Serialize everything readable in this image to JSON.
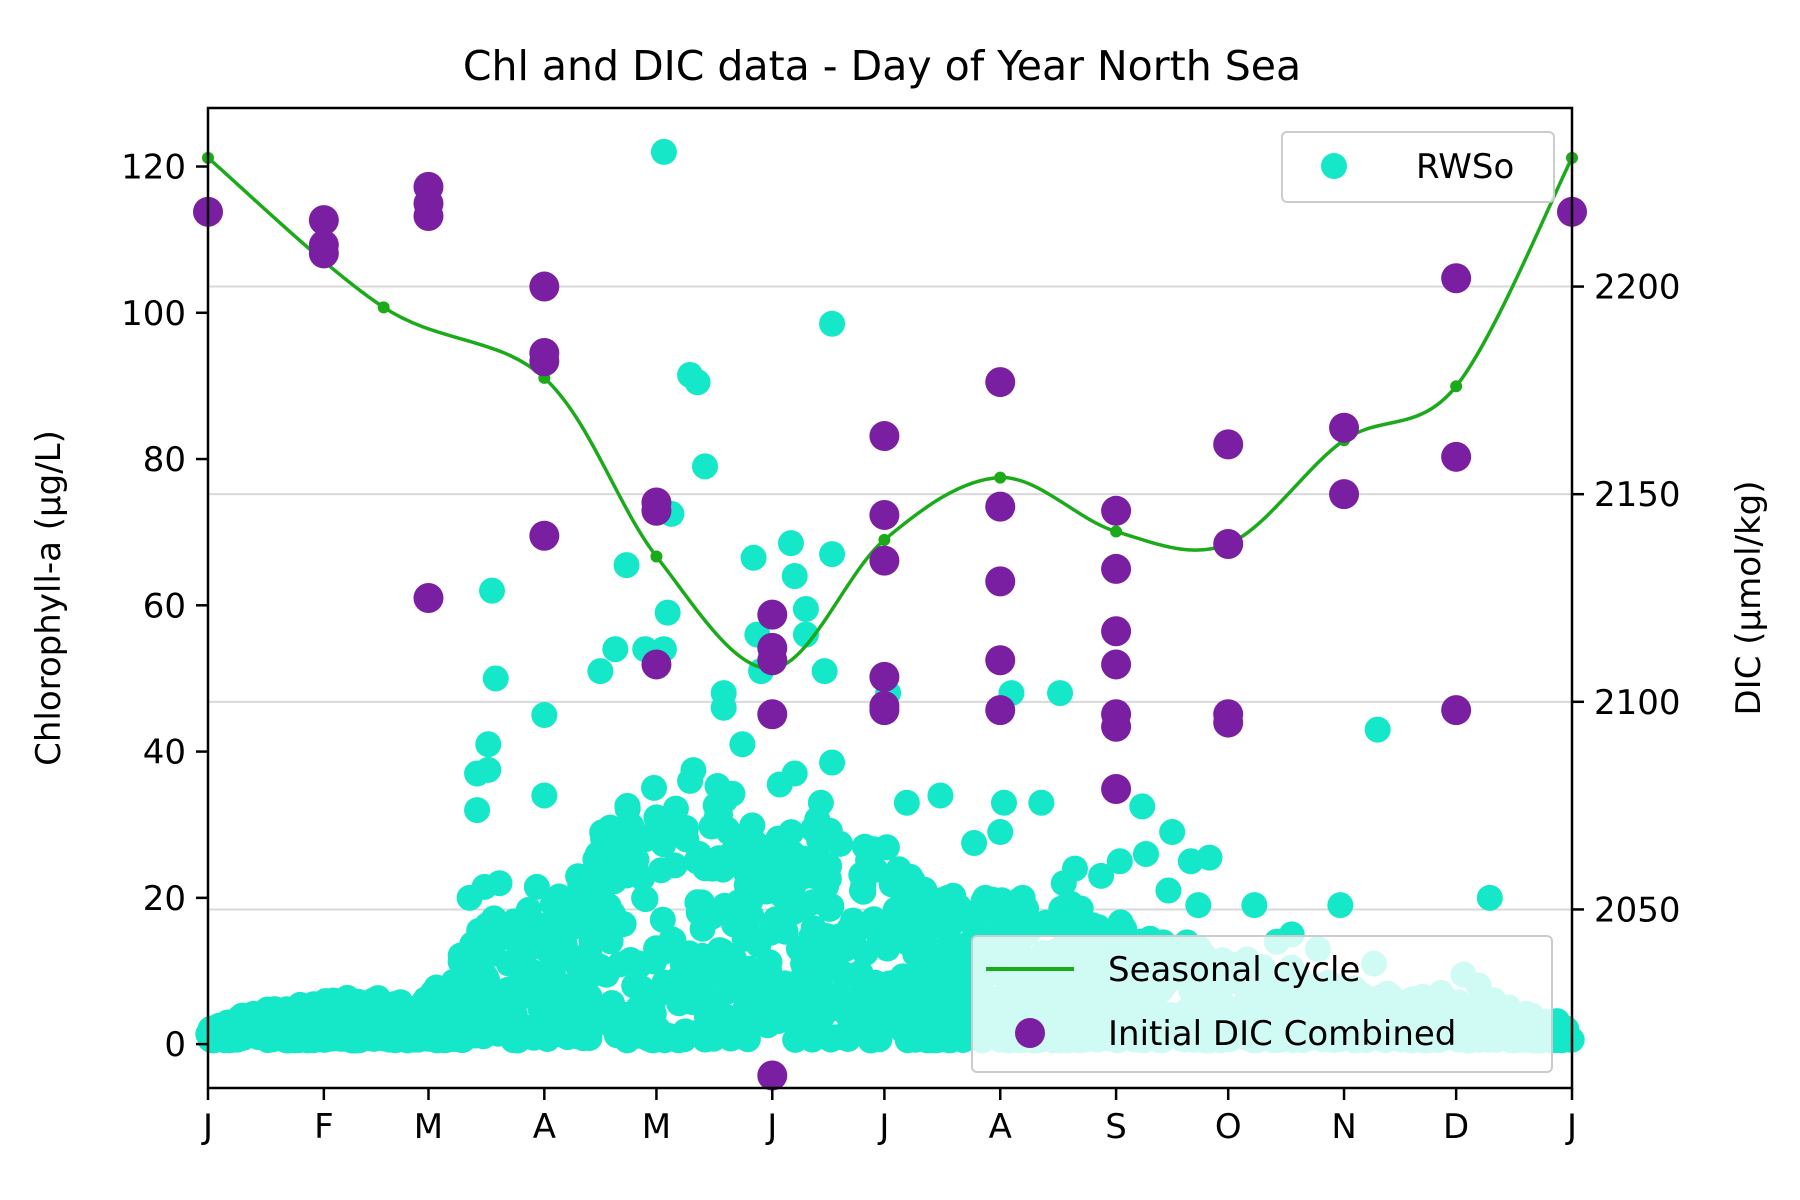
{
  "chart_data": {
    "type": "scatter",
    "title": "Chl and DIC data - Day of Year North Sea",
    "x_axis": {
      "range_days": [
        0,
        365
      ],
      "tick_days": [
        0,
        31,
        59,
        90,
        120,
        151,
        181,
        212,
        243,
        273,
        304,
        334,
        365
      ],
      "tick_labels": [
        "J",
        "F",
        "M",
        "A",
        "M",
        "J",
        "J",
        "A",
        "S",
        "O",
        "N",
        "D",
        "J"
      ]
    },
    "y_left": {
      "label": "Chlorophyll-a (µg/L)",
      "range": [
        -6,
        128
      ],
      "ticks": [
        0,
        20,
        40,
        60,
        80,
        100,
        120
      ]
    },
    "y_right": {
      "label": "DIC (µmol/kg)",
      "range": [
        2007,
        2243
      ],
      "ticks": [
        2050,
        2100,
        2150,
        2200
      ],
      "grid": true
    },
    "legends": [
      {
        "position": "upper-right",
        "entries": [
          "RWSo"
        ]
      },
      {
        "position": "lower-right",
        "entries": [
          "Seasonal cycle",
          "Initial DIC Combined"
        ]
      }
    ],
    "series": [
      {
        "name": "RWSo",
        "axis": "left",
        "kind": "scatter",
        "color": "#14e8c9",
        "points": [
          [
            122,
            122
          ],
          [
            167,
            98.5
          ],
          [
            129,
            91.5
          ],
          [
            131,
            90.5
          ],
          [
            133,
            79
          ],
          [
            124,
            72.5
          ],
          [
            112,
            65.5
          ],
          [
            146,
            66.5
          ],
          [
            156,
            68.5
          ],
          [
            167,
            67
          ],
          [
            157,
            64
          ],
          [
            76,
            62
          ],
          [
            160,
            59.5
          ],
          [
            123,
            59
          ],
          [
            160,
            56
          ],
          [
            147,
            56
          ],
          [
            105,
            51
          ],
          [
            109,
            54
          ],
          [
            117,
            54
          ],
          [
            122,
            54
          ],
          [
            138,
            48
          ],
          [
            148,
            51
          ],
          [
            165,
            51
          ],
          [
            77,
            50
          ],
          [
            182,
            48
          ],
          [
            228,
            48
          ],
          [
            215,
            48
          ],
          [
            90,
            45
          ],
          [
            138,
            46
          ],
          [
            75,
            41
          ],
          [
            143,
            41
          ],
          [
            167,
            38.5
          ],
          [
            72,
            37
          ],
          [
            75,
            37.5
          ],
          [
            90,
            34
          ],
          [
            72,
            32
          ],
          [
            153,
            35.5
          ],
          [
            157,
            37
          ],
          [
            164,
            33
          ],
          [
            187,
            33
          ],
          [
            196,
            34
          ],
          [
            205,
            27.5
          ],
          [
            213,
            33
          ],
          [
            223,
            33
          ],
          [
            250,
            32.5
          ],
          [
            258,
            29
          ],
          [
            263,
            25
          ],
          [
            268,
            25.5
          ],
          [
            212,
            29
          ],
          [
            229,
            22
          ],
          [
            232,
            24
          ],
          [
            244,
            25
          ],
          [
            251,
            26
          ],
          [
            239,
            23
          ],
          [
            70,
            20
          ],
          [
            74,
            21.5
          ],
          [
            78,
            22
          ],
          [
            88,
            21.5
          ],
          [
            100,
            21
          ],
          [
            108,
            24
          ],
          [
            113,
            30
          ],
          [
            120,
            31
          ],
          [
            128,
            28
          ],
          [
            135,
            24
          ],
          [
            140,
            26
          ],
          [
            148,
            23
          ],
          [
            160,
            23
          ],
          [
            175,
            21
          ],
          [
            188,
            21
          ],
          [
            198,
            20
          ],
          [
            208,
            20
          ],
          [
            218,
            20
          ],
          [
            257,
            21
          ],
          [
            265,
            19
          ],
          [
            280,
            19
          ],
          [
            286,
            14
          ],
          [
            290,
            15
          ],
          [
            297,
            13
          ],
          [
            312,
            11
          ],
          [
            330,
            7
          ],
          [
            336,
            9.5
          ],
          [
            340,
            8
          ],
          [
            344,
            6
          ],
          [
            348,
            5
          ],
          [
            303,
            19
          ],
          [
            313,
            43
          ],
          [
            343,
            20
          ],
          [
            362,
            1.5
          ]
        ],
        "dense_band": {
          "description": "dense cluster of observations across the year",
          "x_days": [
            0,
            10,
            20,
            30,
            40,
            50,
            59,
            64,
            68,
            75,
            82,
            90,
            100,
            110,
            120,
            130,
            140,
            150,
            160,
            170,
            180,
            190,
            200,
            210,
            220,
            230,
            240,
            250,
            260,
            270,
            280,
            290,
            300,
            310,
            320,
            330,
            340,
            350,
            360,
            365
          ],
          "y_upper": [
            3,
            4,
            4.5,
            6,
            6,
            6,
            6,
            9,
            12,
            17,
            19,
            19,
            23,
            34,
            36,
            38,
            36,
            30,
            31,
            29,
            28,
            21,
            20,
            20,
            20,
            19,
            17,
            15,
            14,
            12,
            11,
            10,
            8,
            7,
            6,
            6,
            5,
            4,
            3,
            2
          ]
        }
      },
      {
        "name": "Initial DIC Combined",
        "axis": "right",
        "kind": "scatter",
        "color": "#7b1fa2",
        "points": [
          [
            0,
            2218
          ],
          [
            31,
            2216
          ],
          [
            31,
            2208
          ],
          [
            31,
            2210
          ],
          [
            59,
            2224
          ],
          [
            59,
            2220
          ],
          [
            59,
            2217
          ],
          [
            59,
            2125
          ],
          [
            90,
            2200
          ],
          [
            90,
            2184
          ],
          [
            90,
            2182
          ],
          [
            90,
            2140
          ],
          [
            120,
            2148
          ],
          [
            120,
            2146
          ],
          [
            120,
            2109
          ],
          [
            151,
            2121
          ],
          [
            151,
            2113
          ],
          [
            151,
            2110
          ],
          [
            151,
            2097
          ],
          [
            151,
            2010
          ],
          [
            181,
            2164
          ],
          [
            181,
            2145
          ],
          [
            181,
            2134
          ],
          [
            181,
            2106
          ],
          [
            181,
            2099
          ],
          [
            181,
            2098
          ],
          [
            212,
            2177
          ],
          [
            212,
            2147
          ],
          [
            212,
            2129
          ],
          [
            212,
            2110
          ],
          [
            212,
            2098
          ],
          [
            243,
            2146
          ],
          [
            243,
            2132
          ],
          [
            243,
            2117
          ],
          [
            243,
            2109
          ],
          [
            243,
            2097
          ],
          [
            243,
            2094
          ],
          [
            243,
            2079
          ],
          [
            273,
            2162
          ],
          [
            273,
            2138
          ],
          [
            273,
            2097
          ],
          [
            273,
            2095
          ],
          [
            304,
            2166
          ],
          [
            304,
            2150
          ],
          [
            334,
            2202
          ],
          [
            334,
            2159
          ],
          [
            334,
            2098
          ],
          [
            365,
            2218
          ]
        ]
      },
      {
        "name": "Seasonal cycle",
        "axis": "right",
        "kind": "line",
        "color": "#1aaa1a",
        "points": [
          [
            0,
            2231
          ],
          [
            47,
            2195
          ],
          [
            90,
            2178
          ],
          [
            120,
            2135
          ],
          [
            151,
            2108
          ],
          [
            181,
            2139
          ],
          [
            212,
            2154
          ],
          [
            243,
            2141
          ],
          [
            273,
            2138
          ],
          [
            304,
            2163
          ],
          [
            334,
            2176
          ],
          [
            365,
            2231
          ]
        ]
      }
    ]
  }
}
